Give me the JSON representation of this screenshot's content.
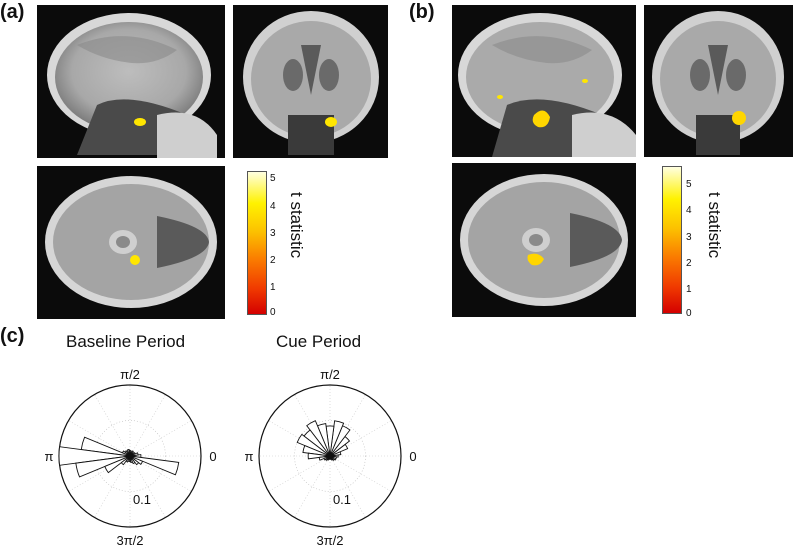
{
  "panels": {
    "a": {
      "label": "(a)"
    },
    "b": {
      "label": "(b)"
    },
    "c": {
      "label": "(c)"
    }
  },
  "colorbar": {
    "title": "t statistic",
    "ticks": [
      "5",
      "4",
      "3",
      "2",
      "1",
      "0"
    ],
    "colors": [
      "#d40000",
      "#f03a00",
      "#fa7a00",
      "#fcc100",
      "#fff200",
      "#ffffe0"
    ]
  },
  "polar": {
    "angle_labels": {
      "top": "π/2",
      "left": "π",
      "right": "0",
      "bottom": "3π/2"
    },
    "radius_label": "0.1"
  },
  "chart_data": [
    {
      "type": "polar-histogram",
      "title": "Baseline Period",
      "angle_labels": [
        "0",
        "π/2",
        "π",
        "3π/2"
      ],
      "radial_tick": 0.1,
      "bins_deg": [
        0,
        15,
        30,
        45,
        60,
        75,
        90,
        105,
        120,
        135,
        150,
        165,
        180,
        195,
        210,
        225,
        240,
        255,
        270,
        285,
        300,
        315,
        330,
        345
      ],
      "values": [
        0.02,
        0.015,
        0.01,
        0.008,
        0.01,
        0.008,
        0.01,
        0.012,
        0.01,
        0.012,
        0.015,
        0.09,
        0.13,
        0.1,
        0.05,
        0.02,
        0.012,
        0.01,
        0.01,
        0.012,
        0.015,
        0.02,
        0.025,
        0.09
      ]
    },
    {
      "type": "polar-histogram",
      "title": "Cue Period",
      "angle_labels": [
        "0",
        "π/2",
        "π",
        "3π/2"
      ],
      "radial_tick": 0.1,
      "bins_deg": [
        0,
        15,
        30,
        45,
        60,
        75,
        90,
        105,
        120,
        135,
        150,
        165,
        180,
        195,
        210,
        225,
        240,
        255,
        270,
        285,
        300,
        315,
        330,
        345
      ],
      "values": [
        0.015,
        0.02,
        0.035,
        0.045,
        0.06,
        0.065,
        0.055,
        0.06,
        0.07,
        0.06,
        0.065,
        0.05,
        0.04,
        0.02,
        0.012,
        0.01,
        0.008,
        0.006,
        0.006,
        0.006,
        0.008,
        0.01,
        0.012,
        0.012
      ]
    }
  ]
}
